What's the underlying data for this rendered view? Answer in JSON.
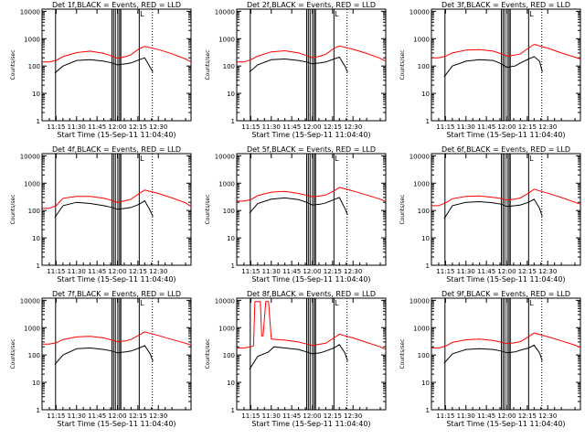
{
  "chart_data": {
    "type": "line",
    "colors": {
      "events": "#000000",
      "lld": "#ff0000"
    },
    "x_ticks": [
      "11:15",
      "11:30",
      "11:45",
      "12:00",
      "12:15",
      "12:30"
    ],
    "x_tick_minutes": [
      15,
      30,
      45,
      60,
      75,
      90
    ],
    "xlim_minutes": [
      4.67,
      114
    ],
    "x_origin": "11:00 (15-Sep-11)",
    "y_ticks": [
      "1",
      "10",
      "100",
      "1000",
      "10000"
    ],
    "ylim": [
      1,
      12000
    ],
    "yscale": "log",
    "xlabel": "Start Time (15-Sep-11 11:04:40)",
    "ylabel": "Counts/sec",
    "markers": {
      "solid_minutes": [
        14.6,
        56.0,
        57.2,
        58.5,
        60.3,
        61.6,
        62.5,
        76.0
      ],
      "dotted_minutes": [
        85.6
      ]
    },
    "flag_label": "L",
    "panels": [
      {
        "title": "Det 1f,BLACK = Events, RED = LLD",
        "series": [
          {
            "name": "Events",
            "x": [
              14,
              20,
              30,
              40,
              50,
              56,
              60,
              66,
              70,
              76,
              80,
              84,
              86
            ],
            "y": [
              55,
              100,
              160,
              170,
              150,
              130,
              110,
              120,
              130,
              170,
              200,
              90,
              60
            ]
          },
          {
            "name": "LLD",
            "x": [
              5,
              10,
              15,
              20,
              30,
              40,
              50,
              55,
              60,
              66,
              70,
              76,
              80,
              90,
              100,
              110,
              114
            ],
            "y": [
              140,
              140,
              160,
              220,
              310,
              350,
              290,
              240,
              190,
              220,
              260,
              430,
              520,
              400,
              280,
              180,
              140
            ]
          }
        ]
      },
      {
        "title": "Det 2f,BLACK = Events, RED = LLD",
        "series": [
          {
            "name": "Events",
            "x": [
              14,
              20,
              30,
              40,
              50,
              56,
              60,
              66,
              70,
              76,
              80,
              84,
              86
            ],
            "y": [
              60,
              110,
              170,
              180,
              160,
              140,
              120,
              130,
              140,
              180,
              210,
              100,
              60
            ]
          },
          {
            "name": "LLD",
            "x": [
              5,
              10,
              15,
              20,
              30,
              40,
              50,
              55,
              60,
              66,
              70,
              76,
              80,
              90,
              100,
              110,
              114
            ],
            "y": [
              140,
              140,
              170,
              230,
              330,
              360,
              300,
              250,
              200,
              230,
              270,
              440,
              540,
              410,
              290,
              190,
              150
            ]
          }
        ]
      },
      {
        "title": "Det 3f,BLACK = Events, RED = LLD",
        "series": [
          {
            "name": "Events",
            "x": [
              14,
              20,
              30,
              40,
              50,
              56,
              60,
              66,
              70,
              76,
              80,
              84,
              86
            ],
            "y": [
              40,
              100,
              150,
              170,
              160,
              120,
              90,
              100,
              130,
              180,
              220,
              150,
              60
            ]
          },
          {
            "name": "LLD",
            "x": [
              5,
              10,
              15,
              20,
              30,
              40,
              50,
              55,
              60,
              66,
              70,
              76,
              80,
              90,
              100,
              110,
              114
            ],
            "y": [
              200,
              200,
              230,
              300,
              380,
              400,
              350,
              290,
              230,
              250,
              280,
              450,
              620,
              450,
              300,
              210,
              180
            ]
          }
        ]
      },
      {
        "title": "Det 4f,BLACK = Events, RED = LLD",
        "series": [
          {
            "name": "Events",
            "x": [
              14,
              20,
              30,
              40,
              50,
              56,
              60,
              66,
              70,
              76,
              80,
              84,
              86
            ],
            "y": [
              55,
              150,
              200,
              180,
              150,
              130,
              110,
              120,
              130,
              170,
              230,
              100,
              60
            ]
          },
          {
            "name": "LLD",
            "x": [
              5,
              10,
              15,
              20,
              30,
              40,
              50,
              55,
              60,
              66,
              70,
              76,
              80,
              90,
              100,
              110,
              114
            ],
            "y": [
              120,
              120,
              150,
              280,
              330,
              330,
              280,
              240,
              200,
              230,
              260,
              420,
              560,
              420,
              290,
              190,
              140
            ]
          }
        ]
      },
      {
        "title": "Det 5f,BLACK = Events, RED = LLD",
        "series": [
          {
            "name": "Events",
            "x": [
              14,
              20,
              30,
              40,
              50,
              56,
              60,
              66,
              70,
              76,
              80,
              84,
              86
            ],
            "y": [
              80,
              180,
              260,
              290,
              250,
              200,
              160,
              170,
              190,
              250,
              300,
              120,
              70
            ]
          },
          {
            "name": "LLD",
            "x": [
              5,
              10,
              15,
              20,
              30,
              40,
              50,
              55,
              60,
              66,
              70,
              76,
              80,
              90,
              100,
              110,
              114
            ],
            "y": [
              220,
              220,
              250,
              350,
              470,
              500,
              420,
              370,
              320,
              340,
              370,
              520,
              700,
              520,
              370,
              260,
              210
            ]
          }
        ]
      },
      {
        "title": "Det 6f,BLACK = Events, RED = LLD",
        "series": [
          {
            "name": "Events",
            "x": [
              14,
              20,
              30,
              40,
              50,
              56,
              60,
              66,
              70,
              76,
              80,
              84,
              86
            ],
            "y": [
              50,
              150,
              200,
              210,
              190,
              170,
              140,
              150,
              160,
              200,
              260,
              120,
              60
            ]
          },
          {
            "name": "LLD",
            "x": [
              5,
              10,
              15,
              20,
              30,
              40,
              50,
              55,
              60,
              66,
              70,
              76,
              80,
              90,
              100,
              110,
              114
            ],
            "y": [
              150,
              150,
              190,
              270,
              330,
              340,
              300,
              280,
              240,
              260,
              290,
              430,
              600,
              430,
              300,
              200,
              170
            ]
          }
        ]
      },
      {
        "title": "Det 7f,BLACK = Events, RED = LLD",
        "series": [
          {
            "name": "Events",
            "x": [
              14,
              20,
              30,
              40,
              50,
              56,
              60,
              66,
              70,
              76,
              80,
              84,
              86
            ],
            "y": [
              45,
              100,
              170,
              180,
              160,
              140,
              120,
              130,
              140,
              180,
              220,
              110,
              60
            ]
          },
          {
            "name": "LLD",
            "x": [
              5,
              10,
              15,
              20,
              30,
              40,
              50,
              55,
              60,
              66,
              70,
              76,
              80,
              90,
              100,
              110,
              114
            ],
            "y": [
              250,
              250,
              280,
              370,
              460,
              480,
              420,
              360,
              310,
              330,
              370,
              540,
              700,
              520,
              370,
              270,
              230
            ]
          }
        ]
      },
      {
        "title": "Det 8f,BLACK = Events, RED = LLD",
        "series": [
          {
            "name": "Events",
            "x": [
              14,
              20,
              28,
              32,
              40,
              50,
              56,
              60,
              66,
              70,
              76,
              80,
              84,
              86
            ],
            "y": [
              30,
              90,
              130,
              200,
              180,
              160,
              130,
              110,
              120,
              140,
              180,
              240,
              120,
              60
            ]
          },
          {
            "name": "LLD",
            "x": [
              5,
              10,
              15,
              17,
              18,
              19,
              22,
              23,
              24,
              26,
              28,
              30,
              40,
              50,
              55,
              60,
              66,
              70,
              76,
              80,
              90,
              100,
              110,
              114
            ],
            "y": [
              180,
              180,
              200,
              220,
              9000,
              9000,
              9000,
              500,
              500,
              9000,
              9000,
              380,
              350,
              300,
              260,
              220,
              250,
              270,
              420,
              580,
              420,
              290,
              200,
              160
            ]
          }
        ]
      },
      {
        "title": "Det 9f,BLACK = Events, RED = LLD",
        "series": [
          {
            "name": "Events",
            "x": [
              14,
              20,
              30,
              40,
              50,
              56,
              60,
              66,
              70,
              76,
              80,
              84,
              86
            ],
            "y": [
              50,
              110,
              160,
              170,
              160,
              140,
              120,
              130,
              150,
              180,
              230,
              120,
              60
            ]
          },
          {
            "name": "LLD",
            "x": [
              5,
              10,
              15,
              20,
              30,
              40,
              50,
              55,
              60,
              66,
              70,
              76,
              80,
              90,
              100,
              110,
              114
            ],
            "y": [
              180,
              180,
              210,
              290,
              360,
              380,
              340,
              300,
              260,
              280,
              310,
              470,
              640,
              470,
              330,
              230,
              190
            ]
          }
        ]
      }
    ]
  }
}
